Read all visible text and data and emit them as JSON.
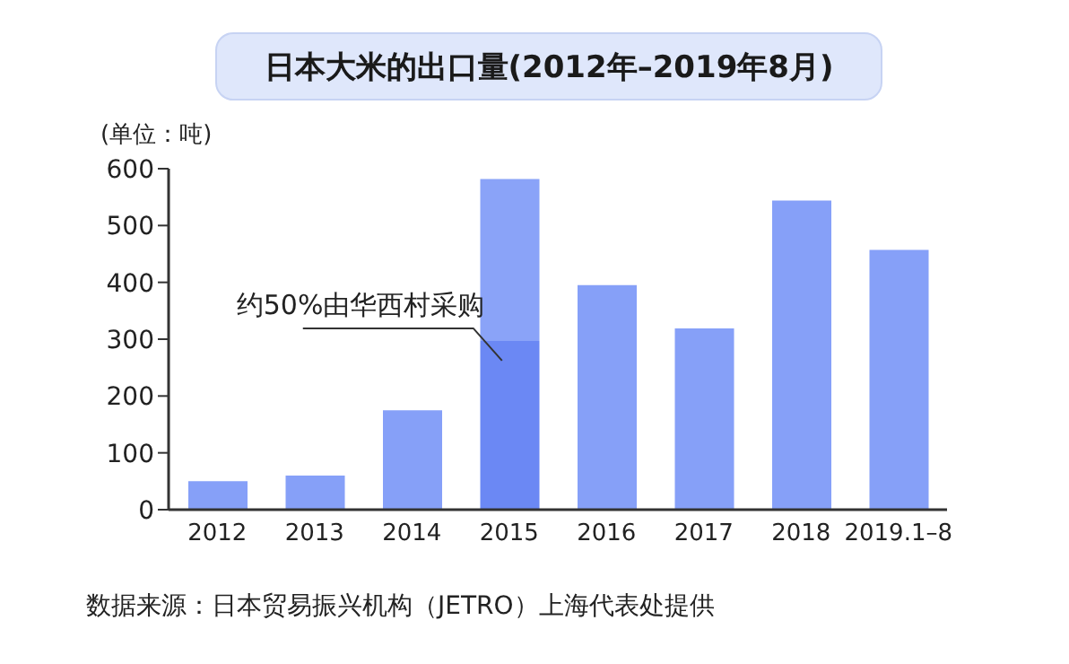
{
  "chart_data": {
    "type": "bar",
    "title": "日本大米的出口量(2012年–2019年8月)",
    "ylabel": "(单位：吨)",
    "categories": [
      "2012",
      "2013",
      "2014",
      "2015",
      "2016",
      "2017",
      "2018",
      "2019.1–8"
    ],
    "stacked": true,
    "series": [
      {
        "color": "#86a0f8",
        "colors": [
          "#86a0f8",
          "#86a0f8",
          "#86a0f8",
          "#6b88f4",
          "#86a0f8",
          "#86a0f8",
          "#86a0f8",
          "#86a0f8"
        ],
        "values": [
          50,
          60,
          175,
          297,
          395,
          319,
          544,
          457
        ]
      },
      {
        "color": "#8aa3f8",
        "values": [
          null,
          null,
          null,
          285,
          null,
          null,
          null,
          null
        ]
      }
    ],
    "ylim": [
      0,
      600
    ],
    "yticks": [
      0,
      100,
      200,
      300,
      400,
      500,
      600
    ],
    "grid": false,
    "legend": false,
    "annotations": [
      {
        "text": "约50%由华西村采购",
        "x": "2015",
        "y": 297
      },
      "数据来源：日本贸易振兴机构（JETRO）上海代表处提供"
    ]
  }
}
